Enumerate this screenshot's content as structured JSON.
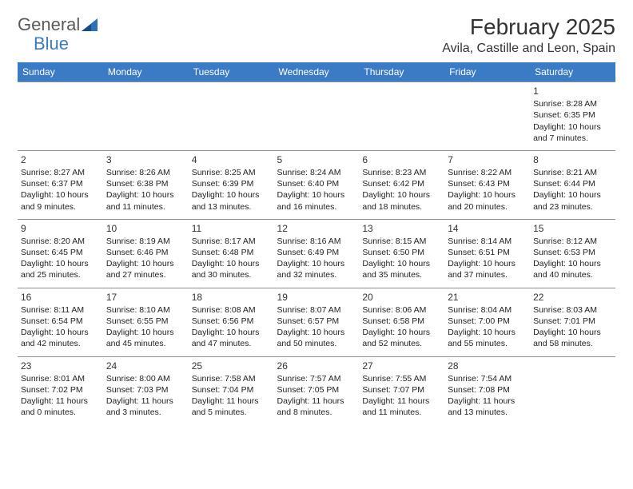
{
  "logo": {
    "text1": "General",
    "text2": "Blue",
    "color_general": "#5a5a5a",
    "color_blue": "#3b7ac4"
  },
  "title": "February 2025",
  "location": "Avila, Castille and Leon, Spain",
  "header_bg": "#3b7ac4",
  "header_fg": "#ffffff",
  "border_color": "#8a8f94",
  "days_of_week": [
    "Sunday",
    "Monday",
    "Tuesday",
    "Wednesday",
    "Thursday",
    "Friday",
    "Saturday"
  ],
  "weeks": [
    [
      null,
      null,
      null,
      null,
      null,
      null,
      {
        "n": "1",
        "sr": "Sunrise: 8:28 AM",
        "ss": "Sunset: 6:35 PM",
        "dl": "Daylight: 10 hours and 7 minutes."
      }
    ],
    [
      {
        "n": "2",
        "sr": "Sunrise: 8:27 AM",
        "ss": "Sunset: 6:37 PM",
        "dl": "Daylight: 10 hours and 9 minutes."
      },
      {
        "n": "3",
        "sr": "Sunrise: 8:26 AM",
        "ss": "Sunset: 6:38 PM",
        "dl": "Daylight: 10 hours and 11 minutes."
      },
      {
        "n": "4",
        "sr": "Sunrise: 8:25 AM",
        "ss": "Sunset: 6:39 PM",
        "dl": "Daylight: 10 hours and 13 minutes."
      },
      {
        "n": "5",
        "sr": "Sunrise: 8:24 AM",
        "ss": "Sunset: 6:40 PM",
        "dl": "Daylight: 10 hours and 16 minutes."
      },
      {
        "n": "6",
        "sr": "Sunrise: 8:23 AM",
        "ss": "Sunset: 6:42 PM",
        "dl": "Daylight: 10 hours and 18 minutes."
      },
      {
        "n": "7",
        "sr": "Sunrise: 8:22 AM",
        "ss": "Sunset: 6:43 PM",
        "dl": "Daylight: 10 hours and 20 minutes."
      },
      {
        "n": "8",
        "sr": "Sunrise: 8:21 AM",
        "ss": "Sunset: 6:44 PM",
        "dl": "Daylight: 10 hours and 23 minutes."
      }
    ],
    [
      {
        "n": "9",
        "sr": "Sunrise: 8:20 AM",
        "ss": "Sunset: 6:45 PM",
        "dl": "Daylight: 10 hours and 25 minutes."
      },
      {
        "n": "10",
        "sr": "Sunrise: 8:19 AM",
        "ss": "Sunset: 6:46 PM",
        "dl": "Daylight: 10 hours and 27 minutes."
      },
      {
        "n": "11",
        "sr": "Sunrise: 8:17 AM",
        "ss": "Sunset: 6:48 PM",
        "dl": "Daylight: 10 hours and 30 minutes."
      },
      {
        "n": "12",
        "sr": "Sunrise: 8:16 AM",
        "ss": "Sunset: 6:49 PM",
        "dl": "Daylight: 10 hours and 32 minutes."
      },
      {
        "n": "13",
        "sr": "Sunrise: 8:15 AM",
        "ss": "Sunset: 6:50 PM",
        "dl": "Daylight: 10 hours and 35 minutes."
      },
      {
        "n": "14",
        "sr": "Sunrise: 8:14 AM",
        "ss": "Sunset: 6:51 PM",
        "dl": "Daylight: 10 hours and 37 minutes."
      },
      {
        "n": "15",
        "sr": "Sunrise: 8:12 AM",
        "ss": "Sunset: 6:53 PM",
        "dl": "Daylight: 10 hours and 40 minutes."
      }
    ],
    [
      {
        "n": "16",
        "sr": "Sunrise: 8:11 AM",
        "ss": "Sunset: 6:54 PM",
        "dl": "Daylight: 10 hours and 42 minutes."
      },
      {
        "n": "17",
        "sr": "Sunrise: 8:10 AM",
        "ss": "Sunset: 6:55 PM",
        "dl": "Daylight: 10 hours and 45 minutes."
      },
      {
        "n": "18",
        "sr": "Sunrise: 8:08 AM",
        "ss": "Sunset: 6:56 PM",
        "dl": "Daylight: 10 hours and 47 minutes."
      },
      {
        "n": "19",
        "sr": "Sunrise: 8:07 AM",
        "ss": "Sunset: 6:57 PM",
        "dl": "Daylight: 10 hours and 50 minutes."
      },
      {
        "n": "20",
        "sr": "Sunrise: 8:06 AM",
        "ss": "Sunset: 6:58 PM",
        "dl": "Daylight: 10 hours and 52 minutes."
      },
      {
        "n": "21",
        "sr": "Sunrise: 8:04 AM",
        "ss": "Sunset: 7:00 PM",
        "dl": "Daylight: 10 hours and 55 minutes."
      },
      {
        "n": "22",
        "sr": "Sunrise: 8:03 AM",
        "ss": "Sunset: 7:01 PM",
        "dl": "Daylight: 10 hours and 58 minutes."
      }
    ],
    [
      {
        "n": "23",
        "sr": "Sunrise: 8:01 AM",
        "ss": "Sunset: 7:02 PM",
        "dl": "Daylight: 11 hours and 0 minutes."
      },
      {
        "n": "24",
        "sr": "Sunrise: 8:00 AM",
        "ss": "Sunset: 7:03 PM",
        "dl": "Daylight: 11 hours and 3 minutes."
      },
      {
        "n": "25",
        "sr": "Sunrise: 7:58 AM",
        "ss": "Sunset: 7:04 PM",
        "dl": "Daylight: 11 hours and 5 minutes."
      },
      {
        "n": "26",
        "sr": "Sunrise: 7:57 AM",
        "ss": "Sunset: 7:05 PM",
        "dl": "Daylight: 11 hours and 8 minutes."
      },
      {
        "n": "27",
        "sr": "Sunrise: 7:55 AM",
        "ss": "Sunset: 7:07 PM",
        "dl": "Daylight: 11 hours and 11 minutes."
      },
      {
        "n": "28",
        "sr": "Sunrise: 7:54 AM",
        "ss": "Sunset: 7:08 PM",
        "dl": "Daylight: 11 hours and 13 minutes."
      },
      null
    ]
  ]
}
